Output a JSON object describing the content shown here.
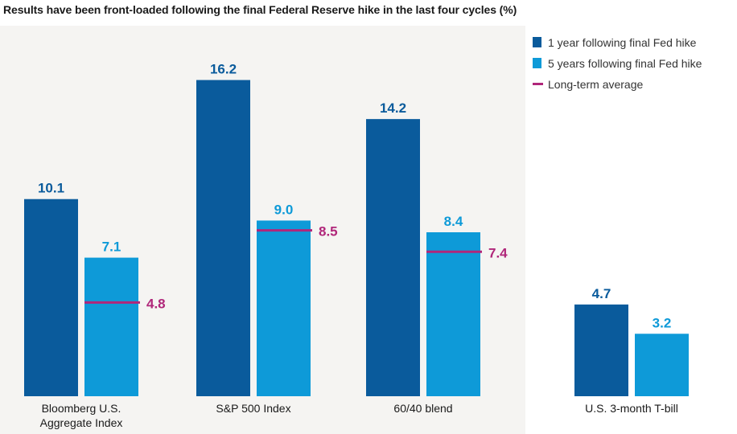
{
  "chart_data": {
    "type": "bar",
    "title": "Results have been front-loaded following the final Federal Reserve hike in the last four cycles (%)",
    "categories": [
      {
        "label_lines": [
          "Bloomberg U.S.",
          "Aggregate Index"
        ]
      },
      {
        "label_lines": [
          "S&P 500 Index"
        ]
      },
      {
        "label_lines": [
          "60/40 blend"
        ]
      },
      {
        "label_lines": [
          "U.S. 3-month T-bill"
        ]
      }
    ],
    "series": [
      {
        "name": "1 year following final Fed hike",
        "color": "#0a5b9c",
        "values": [
          10.1,
          16.2,
          14.2,
          4.7
        ],
        "labels": [
          "10.1",
          "16.2",
          "14.2",
          "4.7"
        ]
      },
      {
        "name": "5 years following final Fed hike",
        "color": "#0e9ad8",
        "values": [
          7.1,
          9.0,
          8.4,
          3.2
        ],
        "labels": [
          "7.1",
          "9.0",
          "8.4",
          "3.2"
        ]
      }
    ],
    "long_term_average": {
      "name": "Long-term average",
      "color": "#b0267a",
      "values": [
        4.8,
        8.5,
        7.4,
        null
      ],
      "labels": [
        "4.8",
        "8.5",
        "7.4",
        ""
      ]
    },
    "ylim": [
      0,
      17.5
    ],
    "xlabel": "",
    "ylabel": "",
    "grid": false,
    "legend_position": "top-right"
  }
}
